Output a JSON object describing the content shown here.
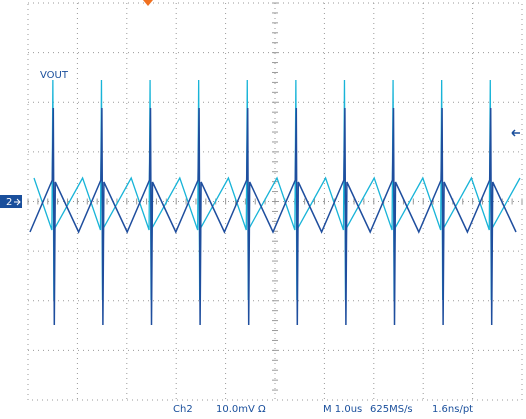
{
  "trace": {
    "label": "VOUT",
    "channel_marker": "2"
  },
  "status_bar": {
    "channel": "Ch2",
    "scale": "10.0mV",
    "coupling": "Ω",
    "timebase": "M 1.0us",
    "sample_rate": "625MS/s",
    "resolution": "1.6ns/pt"
  }
}
